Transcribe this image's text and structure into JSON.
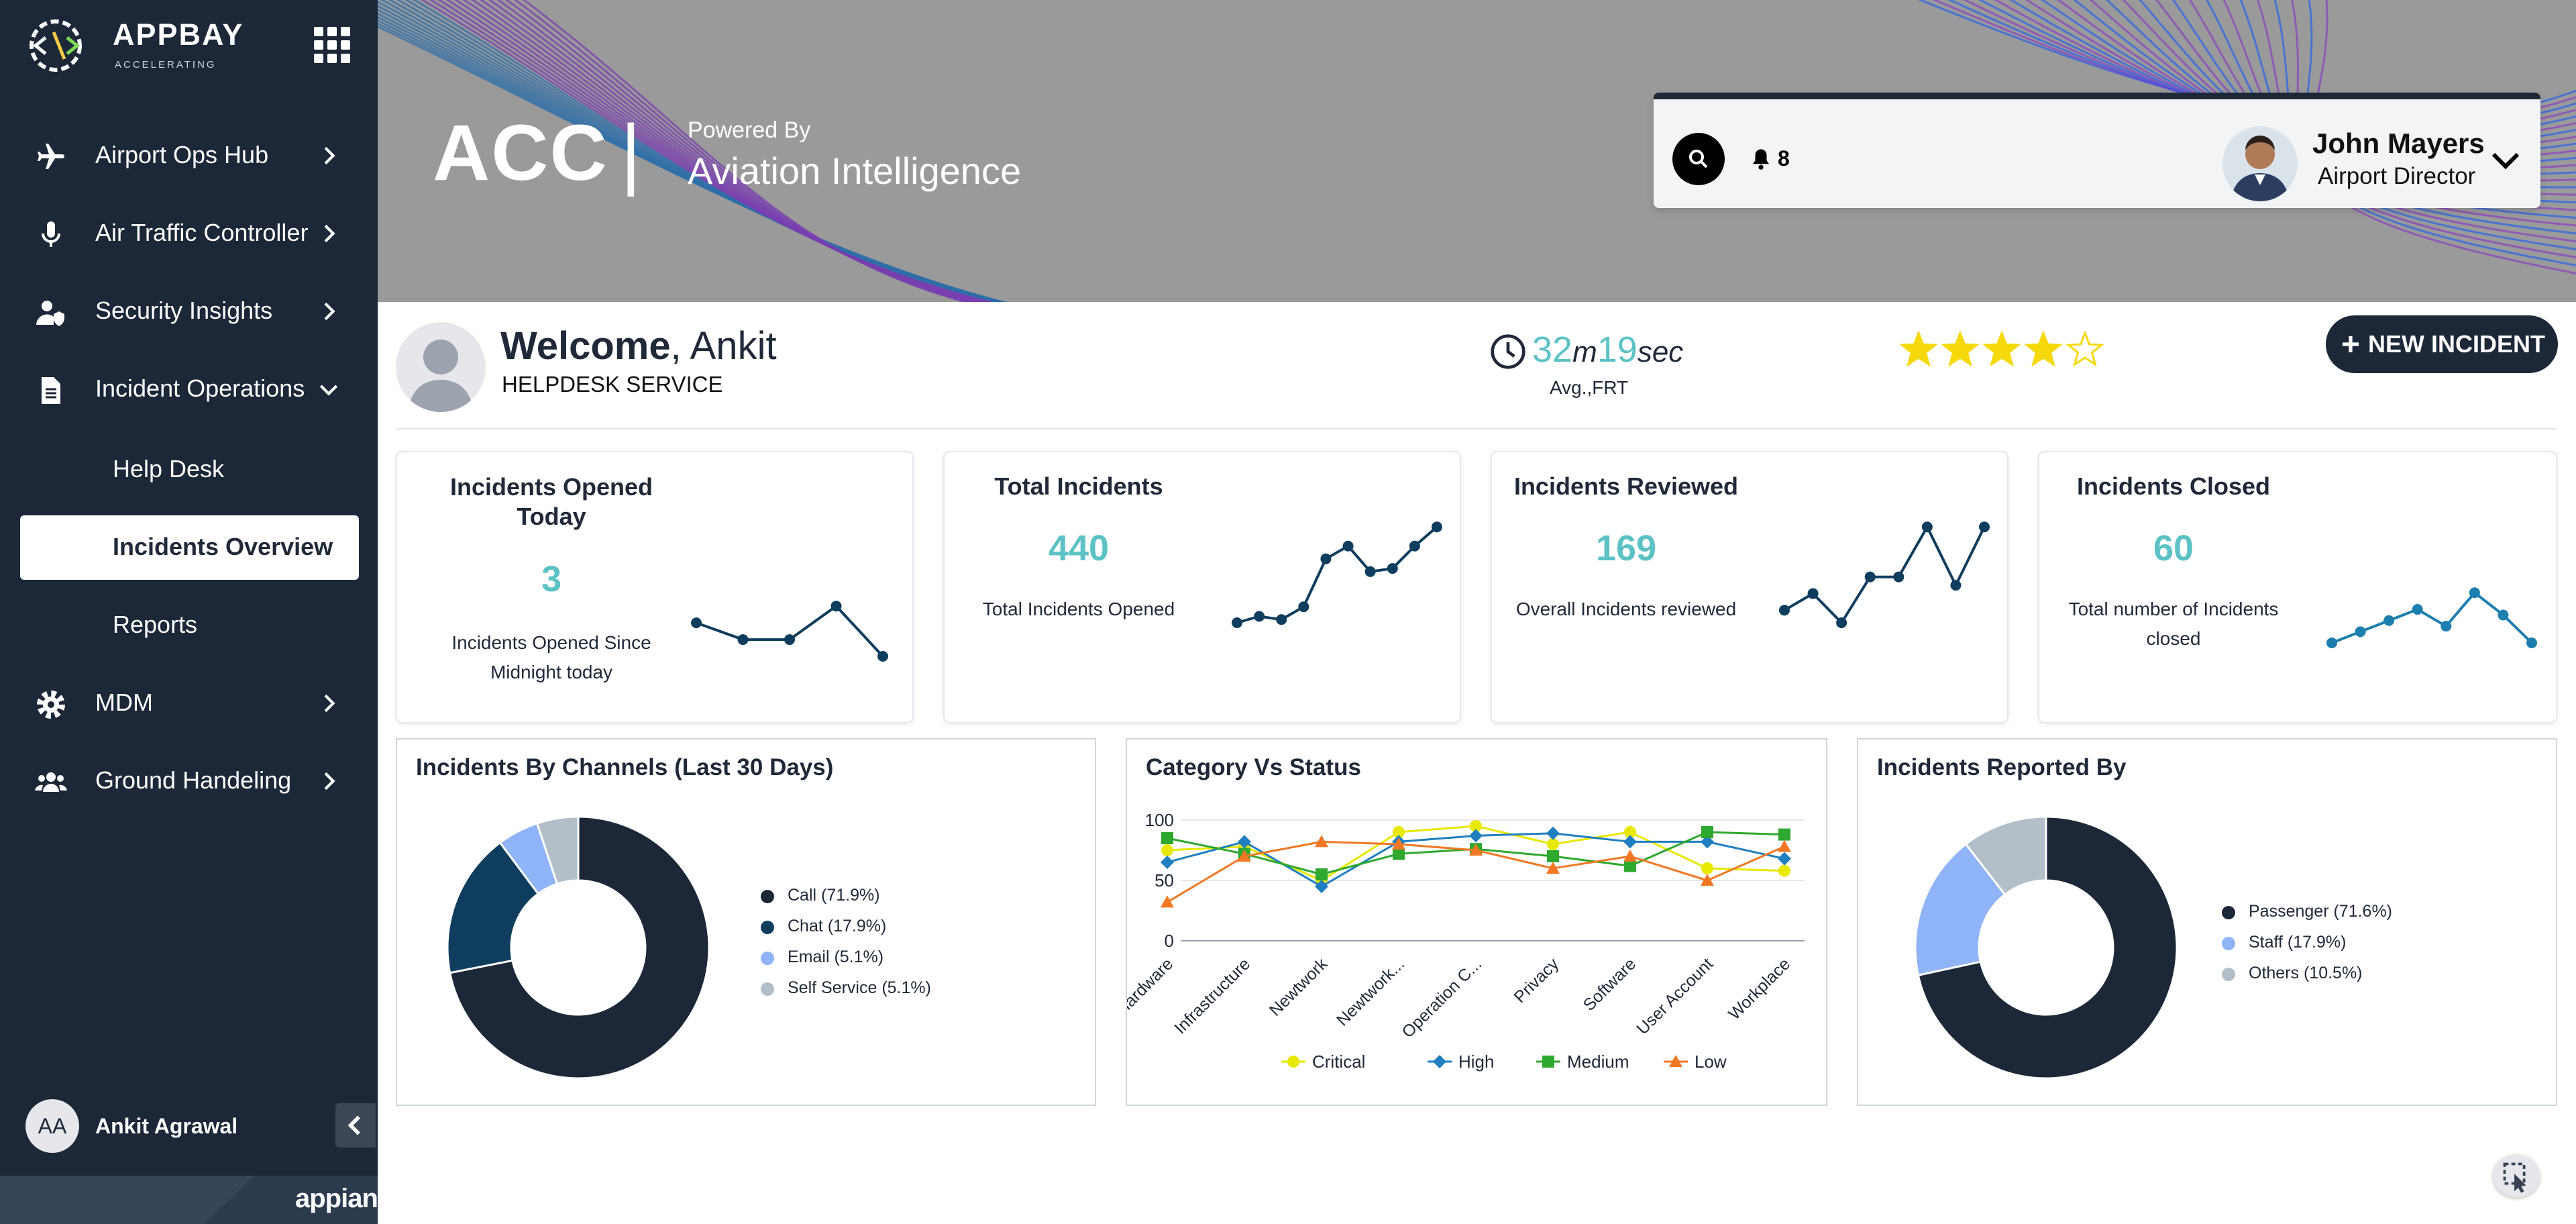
{
  "sidebar": {
    "logo_text": "APPBAY",
    "logo_sub": "ACCELERATING",
    "items": [
      {
        "label": "Airport Ops Hub",
        "icon": "airplane-icon"
      },
      {
        "label": "Air Traffic Controller",
        "icon": "microphone-icon"
      },
      {
        "label": "Security Insights",
        "icon": "user-shield-icon"
      },
      {
        "label": "Incident Operations",
        "icon": "document-icon"
      }
    ],
    "sub_items": [
      {
        "label": "Help Desk"
      },
      {
        "label": "Incidents Overview"
      },
      {
        "label": "Reports"
      }
    ],
    "items_bottom": [
      {
        "label": "MDM",
        "icon": "gear-icon"
      },
      {
        "label": "Ground Handeling",
        "icon": "users-icon"
      }
    ],
    "user_initials": "AA",
    "user_name": "Ankit Agrawal",
    "footer_brand": "appian"
  },
  "banner": {
    "title": "ACC",
    "separator": "|",
    "powered_by": "Powered By",
    "product": "Aviation Intelligence",
    "notifications": "8",
    "profile_name": "John Mayers",
    "profile_role": "Airport Director"
  },
  "welcome": {
    "greeting": "Welcome",
    "name": ", Ankit",
    "department": "HELPDESK SERVICE",
    "frt_minutes": "32",
    "frt_m_unit": "m",
    "frt_seconds": "19",
    "frt_s_unit": "sec",
    "frt_label": "Avg.,FRT",
    "rating": 4,
    "rating_max": 5,
    "new_incident_label": "NEW INCIDENT"
  },
  "kpis": [
    {
      "title_line1": "Incidents Opened",
      "title_line2": "Today",
      "value": "3",
      "desc_line1": "Incidents Opened Since",
      "desc_line2": "Midnight today",
      "spark": [
        5,
        4,
        4,
        6,
        3
      ]
    },
    {
      "title_line1": "Total Incidents",
      "value": "440",
      "desc_line1": "Total Incidents Opened",
      "spark": [
        2,
        4,
        3,
        7,
        22,
        26,
        18,
        19,
        26,
        32
      ]
    },
    {
      "title_line1": "Incidents Reviewed",
      "value": "169",
      "desc_line1": "Overall Incidents reviewed",
      "spark": [
        8,
        12,
        5,
        16,
        16,
        28,
        14,
        28
      ]
    },
    {
      "title_line1": "Incidents Closed",
      "value": "60",
      "desc_line1": "Total number of Incidents",
      "desc_line2": "closed",
      "spark": [
        2,
        4,
        6,
        8,
        5,
        11,
        7,
        2
      ]
    }
  ],
  "chart_data": [
    {
      "type": "pie",
      "title": "Incidents By Channels (Last 30 Days)",
      "labels": [
        "Call (71.9%)",
        "Chat (17.9%)",
        "Email (5.1%)",
        "Self Service (5.1%)"
      ],
      "values": [
        71.9,
        17.9,
        5.1,
        5.1
      ],
      "colors": [
        "#1c2737",
        "#0f3d5e",
        "#8fb4f7",
        "#b3bfc8"
      ]
    },
    {
      "type": "line",
      "title": "Category Vs Status",
      "categories": [
        "Hardware",
        "Infrastructure",
        "Newtwork",
        "Newtwork...",
        "Operation C...",
        "Privacy",
        "Software",
        "User Account",
        "Workplace"
      ],
      "ylim": [
        0,
        100
      ],
      "yticks": [
        0,
        50,
        100
      ],
      "series": [
        {
          "name": "Critical",
          "color": "#e8e800",
          "marker": "circle",
          "values": [
            75,
            78,
            50,
            90,
            95,
            80,
            90,
            60,
            58
          ]
        },
        {
          "name": "High",
          "color": "#1f7fc0",
          "marker": "diamond",
          "values": [
            65,
            82,
            45,
            82,
            87,
            89,
            82,
            82,
            68
          ]
        },
        {
          "name": "Medium",
          "color": "#2ea82e",
          "marker": "square",
          "values": [
            85,
            72,
            55,
            72,
            76,
            70,
            62,
            90,
            88
          ]
        },
        {
          "name": "Low",
          "color": "#f07824",
          "marker": "triangle",
          "values": [
            32,
            70,
            82,
            80,
            75,
            60,
            70,
            50,
            78
          ]
        }
      ]
    },
    {
      "type": "pie",
      "title": "Incidents Reported By",
      "labels": [
        "Passenger (71.6%)",
        "Staff (17.9%)",
        "Others (10.5%)"
      ],
      "values": [
        71.6,
        17.9,
        10.5
      ],
      "colors": [
        "#1c2737",
        "#8fb4f7",
        "#b3bfc8"
      ]
    }
  ]
}
